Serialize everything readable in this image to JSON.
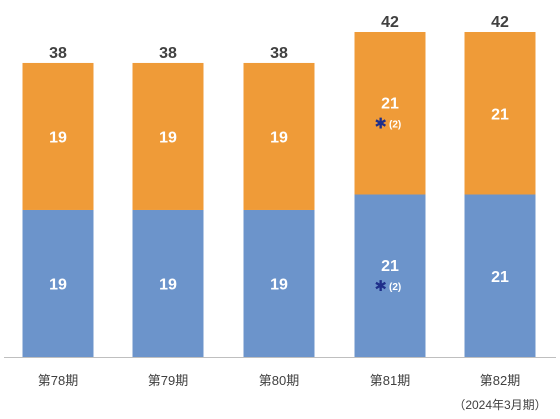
{
  "chart_data": {
    "type": "bar",
    "stacked": true,
    "categories": [
      "第78期",
      "第79期",
      "第80期",
      "第81期",
      "第82期"
    ],
    "sub_label": "（2024年3月期）",
    "sub_label_category": "第82期",
    "series": [
      {
        "color": "#6c94cb",
        "values": [
          19,
          19,
          19,
          21,
          21
        ]
      },
      {
        "color": "#ef9b38",
        "values": [
          19,
          19,
          19,
          21,
          21
        ]
      }
    ],
    "totals": [
      38,
      38,
      38,
      42,
      42
    ],
    "annotations": [
      {
        "category": "第81期",
        "series": 0,
        "mark": "✱",
        "text": "(2)",
        "mark_color": "#1f2f8a"
      },
      {
        "category": "第81期",
        "series": 1,
        "mark": "✱",
        "text": "(2)",
        "mark_color": "#1f2f8a"
      }
    ],
    "ylim": [
      0,
      42
    ],
    "grid": false,
    "legend": "none"
  }
}
